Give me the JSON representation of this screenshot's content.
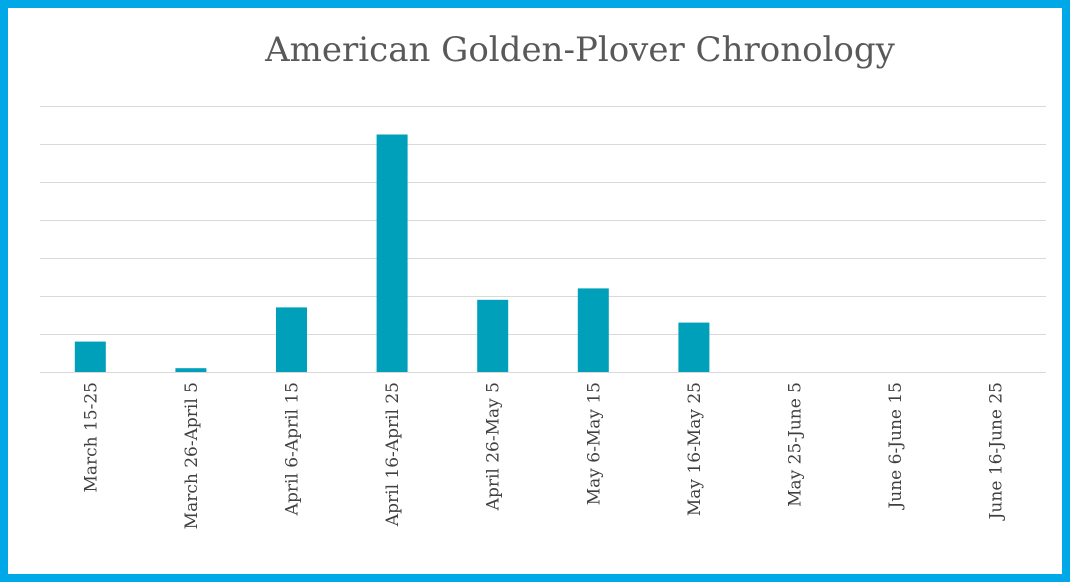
{
  "chart_data": {
    "type": "bar",
    "title": "American Golden-Plover Chronology",
    "categories": [
      "March 15-25",
      "March 26-April 5",
      "April 6-April 15",
      "April 16-April 25",
      "April 26-May 5",
      "May 6-May 15",
      "May 16-May 25",
      "May 25-June 5",
      "June 6-June 15",
      "June 16-June 25"
    ],
    "values": [
      0.8,
      0.1,
      1.7,
      6.25,
      1.9,
      2.2,
      1.3,
      0,
      0,
      0
    ],
    "ylim": [
      0,
      7
    ],
    "grid": true,
    "xlabel": "",
    "ylabel": "",
    "colors": {
      "bar": "#00A0BB",
      "grid": "#D9D9D9",
      "frame": "#00A8E8",
      "text": "#404040",
      "title": "#595959"
    }
  }
}
